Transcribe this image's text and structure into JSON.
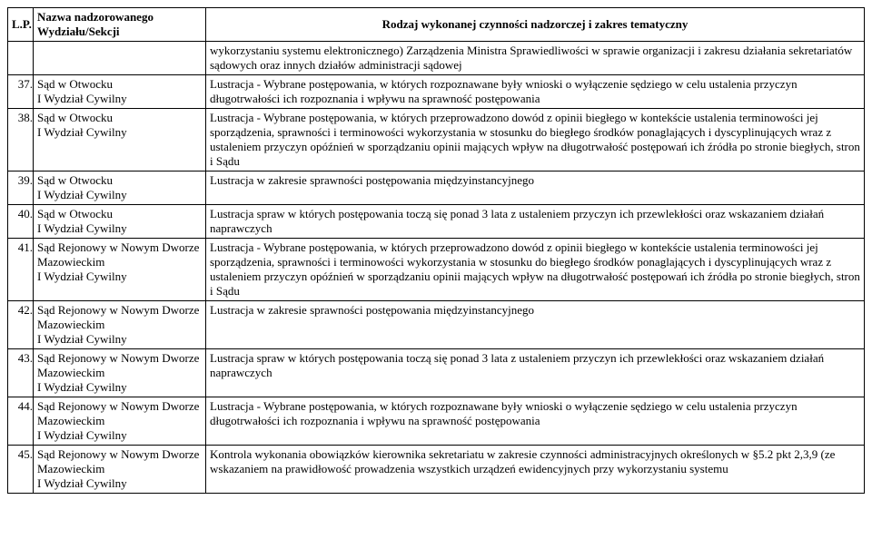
{
  "colors": {
    "background": "#ffffff",
    "text": "#000000",
    "border": "#000000"
  },
  "typography": {
    "font_family": "Times New Roman",
    "font_size_pt": 10
  },
  "table": {
    "columns": {
      "lp": "L.P.",
      "name": "Nazwa nadzorowanego Wydziału/Sekcji",
      "desc": "Rodzaj wykonanej czynności nadzorczej i zakres tematyczny"
    },
    "intro_text": "wykorzystaniu systemu elektronicznego) Zarządzenia Ministra Sprawiedliwości  w sprawie organizacji i zakresu działania sekretariatów sądowych oraz innych działów administracji sądowej",
    "rows": [
      {
        "num": "37.",
        "name": "Sąd w Otwocku\nI Wydział Cywilny",
        "desc": "Lustracja - Wybrane postępowania, w których rozpoznawane były wnioski o wyłączenie sędziego w celu ustalenia przyczyn długotrwałości ich rozpoznania i wpływu na sprawność postępowania"
      },
      {
        "num": "38.",
        "name": "Sąd w Otwocku\nI Wydział Cywilny",
        "desc": "Lustracja - Wybrane postępowania, w których przeprowadzono dowód z opinii biegłego w kontekście ustalenia terminowości jej sporządzenia, sprawności i terminowości wykorzystania w stosunku do biegłego środków ponaglających i dyscyplinujących wraz z ustaleniem przyczyn  opóźnień w sporządzaniu opinii mających wpływ na długotrwałość postępowań ich źródła po stronie biegłych, stron i Sądu"
      },
      {
        "num": "39.",
        "name": "Sąd w Otwocku\nI Wydział Cywilny",
        "desc": "Lustracja w zakresie sprawności postępowania międzyinstancyjnego"
      },
      {
        "num": "40.",
        "name": "Sąd w Otwocku\nI Wydział Cywilny",
        "desc": "Lustracja spraw w których postępowania toczą się ponad 3 lata z ustaleniem przyczyn ich przewlekłości oraz wskazaniem działań naprawczych"
      },
      {
        "num": "41.",
        "name": "Sąd Rejonowy w Nowym Dworze Mazowieckim\nI Wydział Cywilny",
        "desc": "Lustracja - Wybrane postępowania, w których przeprowadzono dowód z opinii biegłego w kontekście ustalenia terminowości jej sporządzenia, sprawności i terminowości wykorzystania w stosunku do biegłego środków ponaglających i dyscyplinujących wraz z ustaleniem przyczyn  opóźnień w sporządzaniu opinii mających wpływ na długotrwałość postępowań ich źródła po stronie biegłych, stron i Sądu"
      },
      {
        "num": "42.",
        "name": "Sąd Rejonowy w Nowym Dworze Mazowieckim\nI Wydział Cywilny",
        "desc": "Lustracja w zakresie sprawności postępowania międzyinstancyjnego"
      },
      {
        "num": "43.",
        "name": "Sąd Rejonowy w Nowym Dworze Mazowieckim\nI Wydział Cywilny",
        "desc": "Lustracja spraw w których postępowania toczą się ponad 3 lata z ustaleniem przyczyn ich przewlekłości oraz wskazaniem działań naprawczych"
      },
      {
        "num": "44.",
        "name": "Sąd Rejonowy w Nowym Dworze Mazowieckim\nI Wydział Cywilny",
        "desc": "Lustracja - Wybrane postępowania, w których rozpoznawane były wnioski o wyłączenie sędziego w celu ustalenia przyczyn długotrwałości ich rozpoznania i wpływu na sprawność postępowania"
      },
      {
        "num": "45.",
        "name": "Sąd Rejonowy w Nowym Dworze Mazowieckim\nI Wydział Cywilny",
        "desc": "Kontrola wykonania obowiązków kierownika sekretariatu w zakresie czynności administracyjnych określonych  w §5.2 pkt 2,3,9 (ze wskazaniem na prawidłowość prowadzenia wszystkich urządzeń ewidencyjnych przy wykorzystaniu systemu"
      }
    ]
  }
}
